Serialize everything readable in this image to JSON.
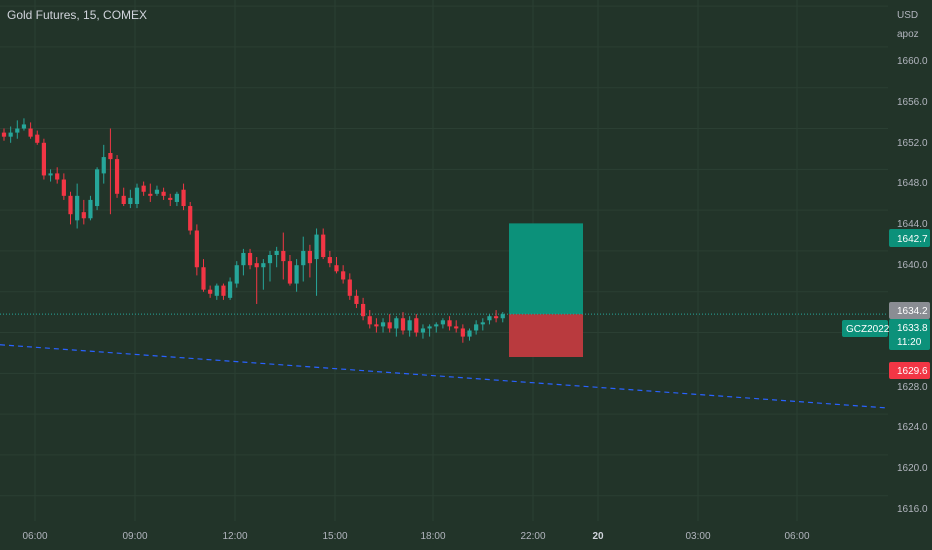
{
  "header": {
    "title": "Gold Futures, 15, COMEX"
  },
  "axis": {
    "currency": "USD",
    "unit": "apoz"
  },
  "price_scale": [
    "1660.0",
    "1656.0",
    "1652.0",
    "1648.0",
    "1644.0",
    "1640.0",
    "1628.0",
    "1624.0",
    "1620.0",
    "1616.0"
  ],
  "time_scale": [
    "06:00",
    "09:00",
    "12:00",
    "15:00",
    "18:00",
    "22:00",
    "20",
    "03:00",
    "06:00"
  ],
  "tags": {
    "target": "1642.7",
    "prev": "1634.2",
    "symbol": "GCZ2022",
    "last": "1633.8",
    "countdown": "11:20",
    "stop": "1629.6"
  },
  "colors": {
    "background": "#223429",
    "up": "#26a69a",
    "down": "#f23645",
    "profit_zone": "#0c917a",
    "loss_zone": "#b93a3e",
    "trendline": "#2962ff"
  },
  "chart_data": {
    "type": "candlestick",
    "symbol": "GCZ2022",
    "interval": "15",
    "exchange": "COMEX",
    "y_range": [
      1614.6,
      1664.6
    ],
    "last_price": 1633.8,
    "position": {
      "entry": 1633.8,
      "target": 1642.7,
      "stop": 1629.6
    },
    "candles_ohlc": [
      [
        1651.6,
        1652.0,
        1650.8,
        1651.2
      ],
      [
        1651.2,
        1652.2,
        1650.6,
        1651.6
      ],
      [
        1651.6,
        1652.8,
        1651.0,
        1652.0
      ],
      [
        1652.0,
        1653.0,
        1651.8,
        1652.4
      ],
      [
        1652.0,
        1652.6,
        1651.0,
        1651.2
      ],
      [
        1651.4,
        1651.8,
        1650.4,
        1650.6
      ],
      [
        1650.6,
        1651.0,
        1647.0,
        1647.4
      ],
      [
        1647.4,
        1648.0,
        1646.8,
        1647.6
      ],
      [
        1647.6,
        1648.2,
        1646.6,
        1647.0
      ],
      [
        1647.0,
        1647.6,
        1645.0,
        1645.4
      ],
      [
        1645.4,
        1645.8,
        1642.6,
        1643.6
      ],
      [
        1643.0,
        1646.6,
        1642.2,
        1645.4
      ],
      [
        1643.8,
        1645.0,
        1642.6,
        1643.2
      ],
      [
        1643.2,
        1645.4,
        1643.0,
        1645.0
      ],
      [
        1644.4,
        1648.2,
        1644.0,
        1648.0
      ],
      [
        1647.6,
        1650.4,
        1646.6,
        1649.2
      ],
      [
        1649.6,
        1652.0,
        1643.6,
        1649.0
      ],
      [
        1649.0,
        1649.4,
        1645.2,
        1645.6
      ],
      [
        1645.4,
        1646.2,
        1644.4,
        1644.6
      ],
      [
        1644.6,
        1646.0,
        1644.2,
        1645.2
      ],
      [
        1644.6,
        1646.6,
        1644.2,
        1646.2
      ],
      [
        1646.4,
        1646.8,
        1645.4,
        1645.8
      ],
      [
        1645.6,
        1646.6,
        1644.8,
        1645.4
      ],
      [
        1645.6,
        1646.4,
        1645.4,
        1646.0
      ],
      [
        1645.8,
        1646.2,
        1645.0,
        1645.4
      ],
      [
        1645.2,
        1645.6,
        1644.4,
        1645.0
      ],
      [
        1644.8,
        1645.8,
        1644.4,
        1645.6
      ],
      [
        1646.0,
        1646.6,
        1644.0,
        1644.4
      ],
      [
        1644.4,
        1644.8,
        1641.6,
        1642.0
      ],
      [
        1642.0,
        1642.6,
        1637.6,
        1638.4
      ],
      [
        1638.4,
        1639.2,
        1636.0,
        1636.2
      ],
      [
        1636.2,
        1636.6,
        1635.4,
        1635.8
      ],
      [
        1635.6,
        1636.8,
        1635.2,
        1636.6
      ],
      [
        1636.6,
        1636.8,
        1635.2,
        1635.6
      ],
      [
        1635.4,
        1637.4,
        1635.2,
        1637.0
      ],
      [
        1636.8,
        1639.0,
        1636.4,
        1638.6
      ],
      [
        1638.6,
        1640.2,
        1637.6,
        1639.8
      ],
      [
        1639.8,
        1640.2,
        1638.2,
        1638.6
      ],
      [
        1638.8,
        1639.4,
        1634.8,
        1638.4
      ],
      [
        1638.4,
        1639.2,
        1636.2,
        1638.8
      ],
      [
        1638.8,
        1640.0,
        1637.0,
        1639.6
      ],
      [
        1639.6,
        1640.4,
        1638.4,
        1640.0
      ],
      [
        1640.0,
        1641.8,
        1637.2,
        1639.0
      ],
      [
        1639.0,
        1639.6,
        1636.6,
        1636.8
      ],
      [
        1636.8,
        1639.2,
        1636.0,
        1638.6
      ],
      [
        1638.6,
        1641.4,
        1637.0,
        1640.0
      ],
      [
        1640.0,
        1640.6,
        1637.4,
        1638.8
      ],
      [
        1639.2,
        1642.2,
        1635.6,
        1641.6
      ],
      [
        1641.6,
        1642.2,
        1639.2,
        1639.4
      ],
      [
        1639.4,
        1640.0,
        1638.4,
        1638.8
      ],
      [
        1638.6,
        1639.4,
        1637.8,
        1638.0
      ],
      [
        1638.0,
        1638.6,
        1636.8,
        1637.2
      ],
      [
        1637.2,
        1637.8,
        1635.2,
        1635.6
      ],
      [
        1635.6,
        1636.2,
        1634.4,
        1634.8
      ],
      [
        1634.8,
        1635.4,
        1633.2,
        1633.6
      ],
      [
        1633.6,
        1634.2,
        1632.4,
        1632.8
      ],
      [
        1632.8,
        1633.4,
        1632.0,
        1632.6
      ],
      [
        1632.6,
        1633.4,
        1632.0,
        1633.0
      ],
      [
        1633.0,
        1633.8,
        1632.0,
        1632.4
      ],
      [
        1632.4,
        1633.6,
        1631.6,
        1633.4
      ],
      [
        1633.4,
        1634.0,
        1631.8,
        1632.2
      ],
      [
        1632.2,
        1633.6,
        1631.6,
        1633.2
      ],
      [
        1633.4,
        1633.8,
        1631.6,
        1632.0
      ],
      [
        1632.0,
        1632.8,
        1631.4,
        1632.4
      ],
      [
        1632.4,
        1632.8,
        1631.6,
        1632.6
      ],
      [
        1632.6,
        1633.0,
        1632.0,
        1632.8
      ],
      [
        1632.8,
        1633.4,
        1632.4,
        1633.2
      ],
      [
        1633.2,
        1633.6,
        1632.2,
        1632.6
      ],
      [
        1632.6,
        1633.2,
        1632.0,
        1632.4
      ],
      [
        1632.4,
        1632.8,
        1631.0,
        1631.6
      ],
      [
        1631.6,
        1632.4,
        1631.2,
        1632.2
      ],
      [
        1632.2,
        1633.2,
        1631.8,
        1632.8
      ],
      [
        1632.8,
        1633.4,
        1632.2,
        1633.0
      ],
      [
        1633.2,
        1633.8,
        1632.8,
        1633.6
      ],
      [
        1633.6,
        1634.2,
        1633.0,
        1633.4
      ],
      [
        1633.4,
        1634.0,
        1633.0,
        1633.8
      ]
    ]
  }
}
